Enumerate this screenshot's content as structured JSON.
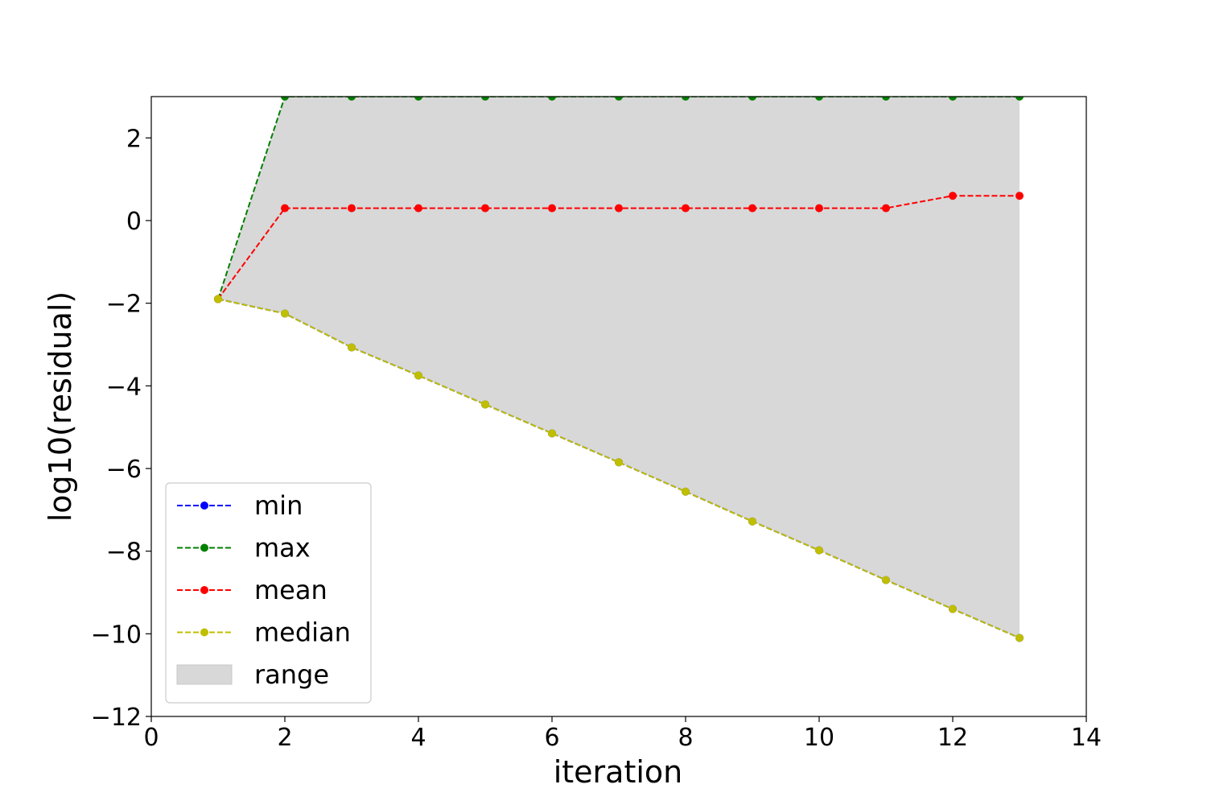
{
  "chart_data": {
    "type": "line",
    "title": "",
    "xlabel": "iteration",
    "ylabel": "log10(residual)",
    "xlim": [
      0,
      14
    ],
    "ylim": [
      -12,
      3
    ],
    "xticks": [
      0,
      2,
      4,
      6,
      8,
      10,
      12,
      14
    ],
    "yticks": [
      -12,
      -10,
      -8,
      -6,
      -4,
      -2,
      0,
      2
    ],
    "grid": false,
    "legend_position": "lower-left",
    "x": [
      1,
      2,
      3,
      4,
      5,
      6,
      7,
      8,
      9,
      10,
      11,
      12,
      13
    ],
    "series": [
      {
        "name": "min",
        "color": "#0000ff",
        "style": "dashed-dot-markers",
        "values": [
          -1.9,
          -2.25,
          -3.07,
          -3.75,
          -4.45,
          -5.15,
          -5.85,
          -6.56,
          -7.28,
          -7.98,
          -8.7,
          -9.4,
          -10.1
        ]
      },
      {
        "name": "max",
        "color": "#008000",
        "style": "dashed-dot-markers",
        "values": [
          -1.9,
          3.0,
          3.0,
          3.0,
          3.0,
          3.0,
          3.0,
          3.0,
          3.0,
          3.0,
          3.0,
          3.0,
          3.0
        ]
      },
      {
        "name": "mean",
        "color": "#ff0000",
        "style": "dashed-dot-markers",
        "values": [
          -1.9,
          0.3,
          0.3,
          0.3,
          0.3,
          0.3,
          0.3,
          0.3,
          0.3,
          0.3,
          0.3,
          0.6,
          0.6
        ]
      },
      {
        "name": "median",
        "color": "#bfbf00",
        "style": "dashed-dot-markers",
        "values": [
          -1.9,
          -2.25,
          -3.07,
          -3.75,
          -4.45,
          -5.15,
          -5.85,
          -6.56,
          -7.28,
          -7.98,
          -8.7,
          -9.4,
          -10.1
        ]
      }
    ],
    "range_band": {
      "name": "range",
      "color": "#d8d8d8",
      "lower_series": "min",
      "upper_series": "max"
    }
  }
}
